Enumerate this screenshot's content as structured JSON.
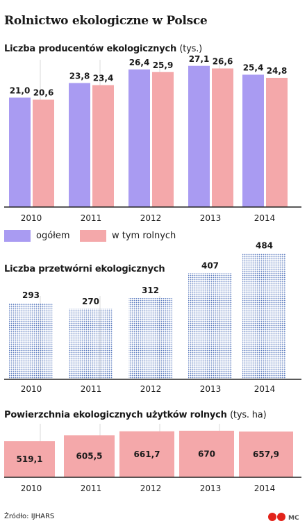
{
  "title": "Rolnictwo ekologiczne w Polsce",
  "source": "Źródło: IJHARS",
  "logo_text": "MC",
  "colors": {
    "ogolem": "#a99bf2",
    "rolnych": "#f4a8aa",
    "dots": "#5b7bbf",
    "area": "#f4a8aa"
  },
  "chart_data": [
    {
      "type": "bar",
      "title": "Liczba producentów ekologicznych",
      "unit": "(tys.)",
      "categories": [
        "2010",
        "2011",
        "2012",
        "2013",
        "2014"
      ],
      "series": [
        {
          "name": "ogółem",
          "values": [
            21.0,
            23.8,
            26.4,
            27.1,
            25.4
          ],
          "labels": [
            "21,0",
            "23,8",
            "26,4",
            "27,1",
            "25,4"
          ]
        },
        {
          "name": "w tym rolnych",
          "values": [
            20.6,
            23.4,
            25.9,
            26.6,
            24.8
          ],
          "labels": [
            "20,6",
            "23,4",
            "25,9",
            "26,6",
            "24,8"
          ]
        }
      ],
      "legend": "bottom-left"
    },
    {
      "type": "bar",
      "title": "Liczba przetwórni ekologicznych",
      "categories": [
        "2010",
        "2011",
        "2012",
        "2013",
        "2014"
      ],
      "values": [
        293,
        270,
        312,
        407,
        484
      ],
      "labels": [
        "293",
        "270",
        "312",
        "407",
        "484"
      ]
    },
    {
      "type": "bar",
      "title": "Powierzchnia ekologicznych użytków rolnych",
      "unit": "(tys. ha)",
      "categories": [
        "2010",
        "2011",
        "2012",
        "2013",
        "2014"
      ],
      "values": [
        519.1,
        605.5,
        661.7,
        670,
        657.9
      ],
      "labels": [
        "519,1",
        "605,5",
        "661,7",
        "670",
        "657,9"
      ]
    }
  ]
}
